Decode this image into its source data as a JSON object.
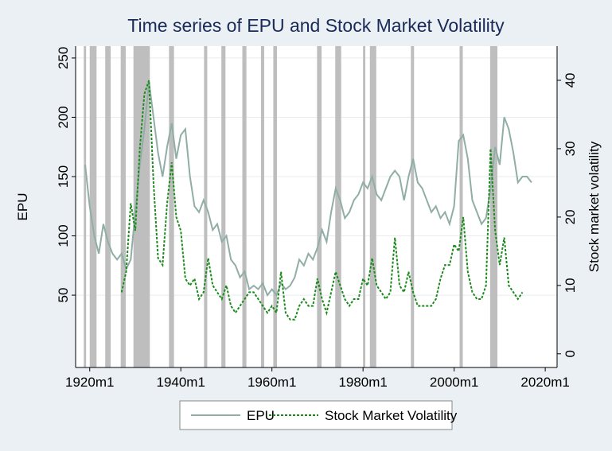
{
  "chart_data": {
    "type": "line",
    "title": "Time series of EPU and Stock Market Volatility",
    "y_label": "EPU",
    "y2_label": "Stock market volatility",
    "xlim": [
      1916.9,
      2022.6
    ],
    "xticks": [
      {
        "value": 1920,
        "label": "1920m1"
      },
      {
        "value": 1940,
        "label": "1940m1"
      },
      {
        "value": 1960,
        "label": "1960m1"
      },
      {
        "value": 1980,
        "label": "1980m1"
      },
      {
        "value": 2000,
        "label": "2000m1"
      },
      {
        "value": 2020,
        "label": "2020m1"
      }
    ],
    "ylim": [
      -11,
      260
    ],
    "yticks": [
      50,
      100,
      150,
      200,
      250
    ],
    "y2lim": [
      -2,
      45
    ],
    "y2ticks": [
      0,
      10,
      20,
      30,
      40
    ],
    "grid": true,
    "legend_position": "bottom",
    "shaded_periods": [
      [
        1918.7,
        1919.2
      ],
      [
        1920.0,
        1921.5
      ],
      [
        1923.4,
        1924.6
      ],
      [
        1926.8,
        1927.9
      ],
      [
        1929.6,
        1933.2
      ],
      [
        1937.4,
        1938.5
      ],
      [
        1945.1,
        1945.8
      ],
      [
        1948.9,
        1949.8
      ],
      [
        1953.5,
        1954.4
      ],
      [
        1957.6,
        1958.3
      ],
      [
        1960.3,
        1961.1
      ],
      [
        1969.9,
        1970.9
      ],
      [
        1973.9,
        1975.2
      ],
      [
        1980.0,
        1980.5
      ],
      [
        1981.5,
        1982.9
      ],
      [
        1990.5,
        1991.2
      ],
      [
        2001.2,
        2001.9
      ],
      [
        2007.9,
        2009.5
      ]
    ],
    "shade_color": "#bebebe",
    "series": [
      {
        "name": "EPU",
        "color": "#90aea6",
        "axis": "y",
        "x": [
          1919,
          1920,
          1921,
          1922,
          1923,
          1924,
          1925,
          1926,
          1927,
          1928,
          1929,
          1930,
          1931,
          1932,
          1933,
          1934,
          1935,
          1936,
          1937,
          1938,
          1939,
          1940,
          1941,
          1942,
          1943,
          1944,
          1945,
          1946,
          1947,
          1948,
          1949,
          1950,
          1951,
          1952,
          1953,
          1954,
          1955,
          1956,
          1957,
          1958,
          1959,
          1960,
          1961,
          1962,
          1963,
          1964,
          1965,
          1966,
          1967,
          1968,
          1969,
          1970,
          1971,
          1972,
          1973,
          1974,
          1975,
          1976,
          1977,
          1978,
          1979,
          1980,
          1981,
          1982,
          1983,
          1984,
          1985,
          1986,
          1987,
          1988,
          1989,
          1990,
          1991,
          1992,
          1993,
          1994,
          1995,
          1996,
          1997,
          1998,
          1999,
          2000,
          2001,
          2002,
          2003,
          2004,
          2005,
          2006,
          2007,
          2008,
          2009,
          2010,
          2011,
          2012,
          2013,
          2014,
          2015,
          2016,
          2017
        ],
        "values": [
          160,
          125,
          100,
          85,
          110,
          95,
          85,
          80,
          85,
          72,
          80,
          120,
          160,
          190,
          230,
          200,
          170,
          150,
          175,
          195,
          165,
          185,
          190,
          150,
          125,
          120,
          130,
          120,
          105,
          110,
          95,
          100,
          80,
          75,
          65,
          70,
          55,
          58,
          55,
          60,
          50,
          55,
          50,
          60,
          55,
          58,
          65,
          80,
          75,
          85,
          80,
          90,
          105,
          95,
          120,
          140,
          130,
          115,
          120,
          130,
          135,
          145,
          140,
          150,
          135,
          130,
          140,
          150,
          155,
          150,
          130,
          150,
          165,
          145,
          140,
          130,
          120,
          125,
          115,
          120,
          110,
          125,
          180,
          185,
          165,
          130,
          120,
          110,
          115,
          140,
          175,
          160,
          200,
          190,
          170,
          145,
          150,
          150,
          145
        ]
      },
      {
        "name": "Stock Market Volatility",
        "color": "#1a8a1a",
        "axis": "y2",
        "dash": "3 2",
        "x": [
          1927,
          1928,
          1929,
          1930,
          1931,
          1932,
          1933,
          1934,
          1935,
          1936,
          1937,
          1938,
          1939,
          1940,
          1941,
          1942,
          1943,
          1944,
          1945,
          1946,
          1947,
          1948,
          1949,
          1950,
          1951,
          1952,
          1953,
          1954,
          1955,
          1956,
          1957,
          1958,
          1959,
          1960,
          1961,
          1962,
          1963,
          1964,
          1965,
          1966,
          1967,
          1968,
          1969,
          1970,
          1971,
          1972,
          1973,
          1974,
          1975,
          1976,
          1977,
          1978,
          1979,
          1980,
          1981,
          1982,
          1983,
          1984,
          1985,
          1986,
          1987,
          1988,
          1989,
          1990,
          1991,
          1992,
          1993,
          1994,
          1995,
          1996,
          1997,
          1998,
          1999,
          2000,
          2001,
          2002,
          2003,
          2004,
          2005,
          2006,
          2007,
          2008,
          2009,
          2010,
          2011,
          2012,
          2013,
          2014,
          2015
        ],
        "values": [
          9,
          12,
          22,
          18,
          30,
          38,
          40,
          25,
          14,
          13,
          22,
          28,
          20,
          18,
          11,
          10,
          11,
          8,
          9,
          14,
          10,
          9,
          8,
          10,
          7,
          6,
          7,
          8,
          9,
          9,
          8,
          7,
          6,
          7,
          6,
          12,
          6,
          5,
          5,
          7,
          8,
          7,
          7,
          11,
          8,
          6,
          9,
          12,
          10,
          8,
          7,
          8,
          8,
          11,
          10,
          14,
          10,
          9,
          8,
          9,
          17,
          10,
          9,
          12,
          9,
          7,
          7,
          7,
          7,
          8,
          11,
          13,
          13,
          16,
          15,
          20,
          12,
          9,
          8,
          8,
          10,
          30,
          18,
          13,
          17,
          10,
          9,
          8,
          9
        ]
      }
    ]
  }
}
